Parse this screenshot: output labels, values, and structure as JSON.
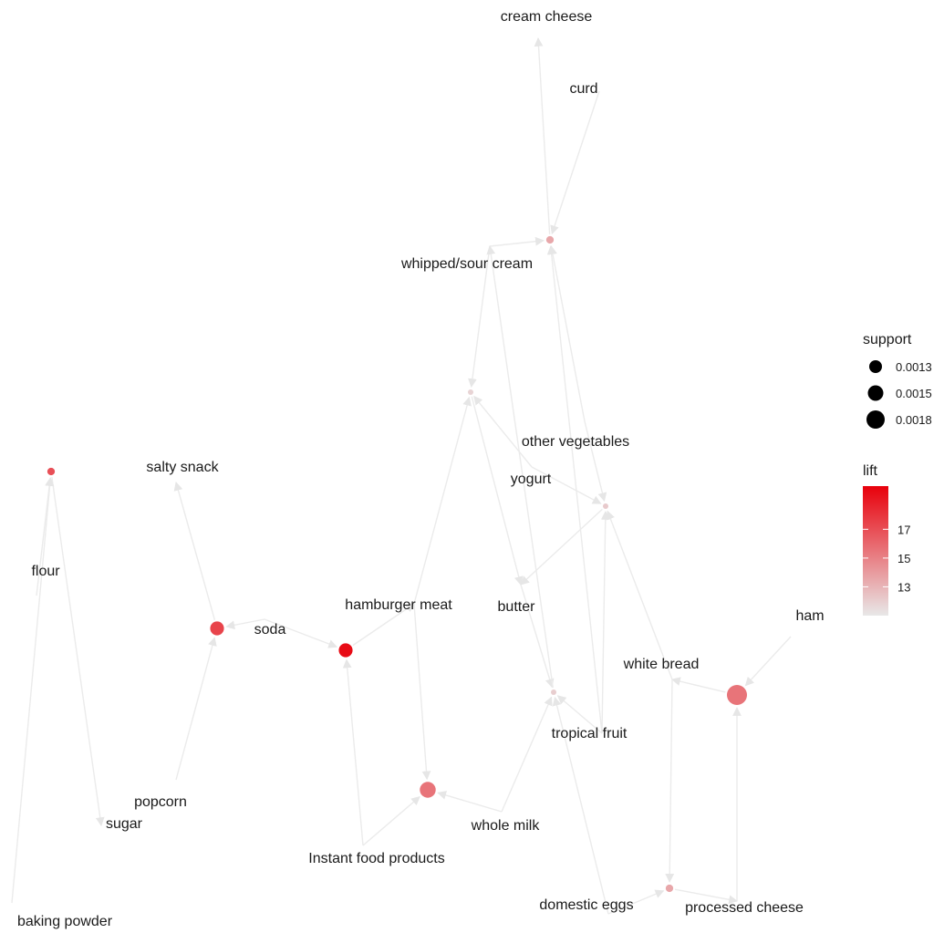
{
  "graph": {
    "items": [
      {
        "id": "cream-cheese",
        "label": "cream cheese"
      },
      {
        "id": "curd",
        "label": "curd"
      },
      {
        "id": "whipped-sour-cream",
        "label": "whipped/sour cream"
      },
      {
        "id": "other-vegetables",
        "label": "other vegetables"
      },
      {
        "id": "yogurt",
        "label": "yogurt"
      },
      {
        "id": "salty-snack",
        "label": "salty snack"
      },
      {
        "id": "flour",
        "label": "flour"
      },
      {
        "id": "hamburger-meat",
        "label": "hamburger meat"
      },
      {
        "id": "butter",
        "label": "butter"
      },
      {
        "id": "soda",
        "label": "soda"
      },
      {
        "id": "ham",
        "label": "ham"
      },
      {
        "id": "white-bread",
        "label": "white bread"
      },
      {
        "id": "tropical-fruit",
        "label": "tropical fruit"
      },
      {
        "id": "popcorn",
        "label": "popcorn"
      },
      {
        "id": "sugar",
        "label": "sugar"
      },
      {
        "id": "whole-milk",
        "label": "whole milk"
      },
      {
        "id": "instant-food-products",
        "label": "Instant food products"
      },
      {
        "id": "domestic-eggs",
        "label": "domestic eggs"
      },
      {
        "id": "processed-cheese",
        "label": "processed cheese"
      },
      {
        "id": "baking-powder",
        "label": "baking powder"
      }
    ],
    "rules": [
      {
        "id": "r1",
        "support": 0.0012,
        "lift": 13.0
      },
      {
        "id": "r2",
        "support": 0.0011,
        "lift": 11.5
      },
      {
        "id": "r3",
        "support": 0.0011,
        "lift": 11.8
      },
      {
        "id": "r4",
        "support": 0.0011,
        "lift": 11.7
      },
      {
        "id": "r5",
        "support": 0.0015,
        "lift": 17.0
      },
      {
        "id": "r6",
        "support": 0.0015,
        "lift": 19.5
      },
      {
        "id": "r7",
        "support": 0.0012,
        "lift": 16.5
      },
      {
        "id": "r8",
        "support": 0.0018,
        "lift": 15.0
      },
      {
        "id": "r9",
        "support": 0.0016,
        "lift": 15.0
      },
      {
        "id": "r10",
        "support": 0.0012,
        "lift": 13.0
      }
    ],
    "edges": [
      {
        "from": "curd",
        "to": "r1"
      },
      {
        "from": "r1",
        "to": "cream-cheese"
      },
      {
        "from": "whipped-sour-cream",
        "to": "r1"
      },
      {
        "from": "tropical-fruit",
        "to": "r1"
      },
      {
        "from": "other-vegetables",
        "to": "r1"
      },
      {
        "from": "whipped-sour-cream",
        "to": "r2"
      },
      {
        "from": "yogurt",
        "to": "r2"
      },
      {
        "from": "hamburger-meat",
        "to": "r2"
      },
      {
        "from": "r2",
        "to": "butter"
      },
      {
        "from": "other-vegetables",
        "to": "r3"
      },
      {
        "from": "yogurt",
        "to": "r3"
      },
      {
        "from": "white-bread",
        "to": "r3"
      },
      {
        "from": "tropical-fruit",
        "to": "r3"
      },
      {
        "from": "r3",
        "to": "butter"
      },
      {
        "from": "butter",
        "to": "r4"
      },
      {
        "from": "tropical-fruit",
        "to": "r4"
      },
      {
        "from": "whole-milk",
        "to": "r4"
      },
      {
        "from": "domestic-eggs",
        "to": "r4"
      },
      {
        "from": "r4",
        "to": "whipped-sour-cream"
      },
      {
        "from": "soda",
        "to": "r5"
      },
      {
        "from": "popcorn",
        "to": "r5"
      },
      {
        "from": "r5",
        "to": "salty-snack"
      },
      {
        "from": "soda",
        "to": "r6"
      },
      {
        "from": "r6",
        "to": "hamburger-meat"
      },
      {
        "from": "instant-food-products",
        "to": "r6"
      },
      {
        "from": "flour",
        "to": "r7"
      },
      {
        "from": "r7",
        "to": "sugar"
      },
      {
        "from": "baking-powder",
        "to": "r7"
      },
      {
        "from": "ham",
        "to": "r8"
      },
      {
        "from": "processed-cheese",
        "to": "r8"
      },
      {
        "from": "r8",
        "to": "white-bread"
      },
      {
        "from": "instant-food-products",
        "to": "r9"
      },
      {
        "from": "whole-milk",
        "to": "r9"
      },
      {
        "from": "hamburger-meat",
        "to": "r9"
      },
      {
        "from": "domestic-eggs",
        "to": "r10"
      },
      {
        "from": "r10",
        "to": "processed-cheese"
      },
      {
        "from": "white-bread",
        "to": "r10"
      }
    ]
  },
  "legend": {
    "support": {
      "title": "support",
      "entries": [
        {
          "label": "0.0013",
          "value": 0.0013
        },
        {
          "label": "0.0015",
          "value": 0.0015
        },
        {
          "label": "0.0018",
          "value": 0.0018
        }
      ]
    },
    "lift": {
      "title": "lift",
      "range": [
        11,
        20
      ],
      "ticks": [
        {
          "label": "17",
          "value": 17
        },
        {
          "label": "15",
          "value": 15
        },
        {
          "label": "13",
          "value": 13
        }
      ],
      "color_low": "#e8e8e8",
      "color_high": "#e8000b"
    }
  }
}
